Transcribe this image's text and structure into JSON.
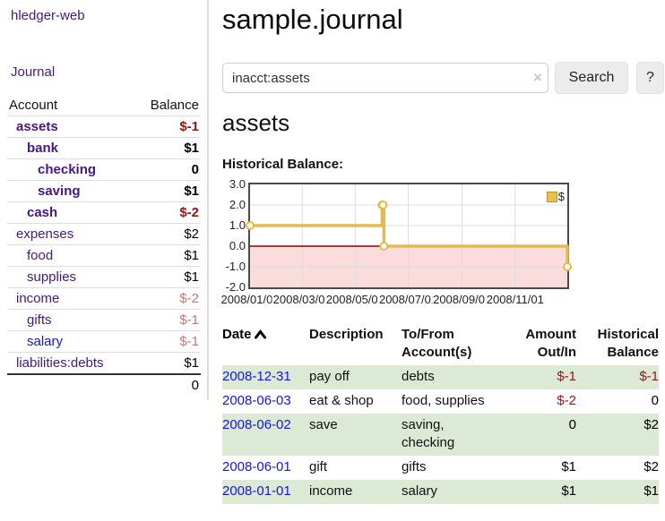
{
  "colors": {
    "link_purple": "#46187f",
    "link_blue": "#1515e0",
    "negative_strong": "#941616",
    "negative_soft": "#bd7b7b",
    "row_stripe_green": "#dbe9d5",
    "chart_line_gold": "#e3bc4c",
    "chart_zero_line": "#8b0000",
    "chart_negative_fill": "#fbdcdc",
    "chart_grid": "#dddddd"
  },
  "brand": {
    "title": "hledger-web"
  },
  "nav": {
    "journal": "Journal"
  },
  "sidebar": {
    "headers": {
      "account": "Account",
      "balance": "Balance"
    },
    "accounts": [
      {
        "name": "assets",
        "balance": "$-1"
      },
      {
        "name": "bank",
        "balance": "$1"
      },
      {
        "name": "checking",
        "balance": "0"
      },
      {
        "name": "saving",
        "balance": "$1"
      },
      {
        "name": "cash",
        "balance": "$-2"
      },
      {
        "name": "expenses",
        "balance": "$2"
      },
      {
        "name": "food",
        "balance": "$1"
      },
      {
        "name": "supplies",
        "balance": "$1"
      },
      {
        "name": "income",
        "balance": "$-2"
      },
      {
        "name": "gifts",
        "balance": "$-1"
      },
      {
        "name": "salary",
        "balance": "$-1"
      },
      {
        "name": "liabilities:debts",
        "balance": "$1"
      }
    ],
    "total": "0"
  },
  "header": {
    "title": "sample.journal"
  },
  "search": {
    "value": "inacct:assets",
    "clear": "×",
    "search_button": "Search",
    "help_button": "?"
  },
  "account_view": {
    "heading": "assets",
    "chart_title": "Historical Balance:"
  },
  "chart_data": {
    "type": "line",
    "step": true,
    "title": "Historical Balance:",
    "legend": [
      {
        "label": "$",
        "color": "#e8c04a"
      }
    ],
    "x_domain": [
      "2008/01/01",
      "2008/12/31"
    ],
    "x_ticks": [
      "2008/01/01",
      "2008/03/01",
      "2008/05/01",
      "2008/07/01",
      "2008/09/01",
      "2008/11/01"
    ],
    "y_ticks": [
      "3.0",
      "2.0",
      "1.0",
      "0.0",
      "-1.0",
      "-2.0"
    ],
    "ylim": [
      -2,
      3
    ],
    "grid": true,
    "series": [
      {
        "name": "$",
        "points": [
          {
            "x": "2008/01/01",
            "y": 1
          },
          {
            "x": "2008/06/01",
            "y": 2
          },
          {
            "x": "2008/06/02",
            "y": 2
          },
          {
            "x": "2008/06/03",
            "y": 0
          },
          {
            "x": "2008/12/31",
            "y": -1
          }
        ]
      }
    ]
  },
  "register": {
    "headers": {
      "date": "Date",
      "description": "Description",
      "tofrom": "To/From Account(s)",
      "amount": "Amount Out/In",
      "balance": "Historical Balance"
    },
    "rows": [
      {
        "date": "2008-12-31",
        "description": "pay off",
        "accounts": "debts",
        "amount": "$-1",
        "balance": "$-1"
      },
      {
        "date": "2008-06-03",
        "description": "eat & shop",
        "accounts": "food, supplies",
        "amount": "$-2",
        "balance": "0"
      },
      {
        "date": "2008-06-02",
        "description": "save",
        "accounts": "saving, checking",
        "amount": "0",
        "balance": "$2"
      },
      {
        "date": "2008-06-01",
        "description": "gift",
        "accounts": "gifts",
        "amount": "$1",
        "balance": "$2"
      },
      {
        "date": "2008-01-01",
        "description": "income",
        "accounts": "salary",
        "amount": "$1",
        "balance": "$1"
      }
    ]
  }
}
